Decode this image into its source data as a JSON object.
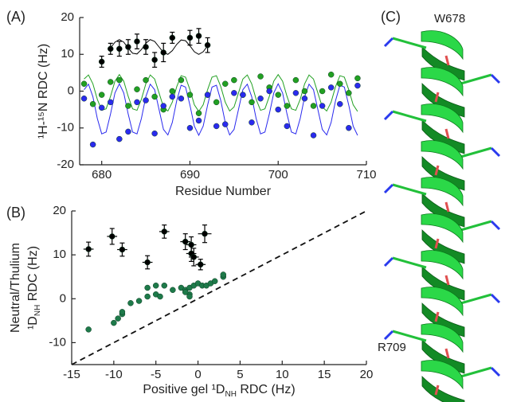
{
  "chart_data": [
    {
      "type": "scatter",
      "panel": "(A)",
      "xlabel": "Residue Number",
      "ylabel": "¹H-¹⁵N RDC (Hz)",
      "xlim": [
        677.5,
        710
      ],
      "xticks": [
        680,
        690,
        700,
        710
      ],
      "ylim": [
        -20,
        20
      ],
      "yticks": [
        -20,
        -10,
        0,
        10,
        20
      ],
      "series": [
        {
          "type": "line",
          "color": "#22a022",
          "x": [
            678,
            678.5,
            679,
            679.5,
            680,
            680.5,
            681,
            681.5,
            682,
            682.5,
            683,
            683.5,
            684,
            684.5,
            685,
            685.5,
            686,
            686.5,
            687,
            687.5,
            688,
            688.5,
            689,
            689.5,
            690,
            690.5,
            691,
            691.5,
            692,
            692.5,
            693,
            693.5,
            694,
            694.5,
            695,
            695.5,
            696,
            696.5,
            697,
            697.5,
            698,
            698.5,
            699,
            699.5,
            700,
            700.5,
            701,
            701.5,
            702,
            702.5,
            703,
            703.5,
            704,
            704.5,
            705,
            705.5,
            706,
            706.5,
            707,
            707.5,
            708,
            708.5,
            709
          ],
          "values": [
            3.3,
            4.4,
            2.0,
            -2.2,
            -5.2,
            -4.8,
            -1.4,
            2.7,
            4.5,
            2.7,
            -1.4,
            -4.8,
            -5.2,
            -2.2,
            2.0,
            4.4,
            3.3,
            -0.5,
            -4.3,
            -5.4,
            -3.0,
            1.2,
            4.2,
            3.8,
            0.4,
            -3.7,
            -5.5,
            -3.7,
            0.4,
            3.8,
            4.2,
            1.2,
            -3.0,
            -5.4,
            -4.3,
            -0.5,
            3.3,
            4.4,
            2.0,
            -2.2,
            -5.2,
            -4.8,
            -1.4,
            2.7,
            4.5,
            2.7,
            -1.4,
            -4.8,
            -5.2,
            -2.2,
            2.0,
            4.4,
            3.3,
            -0.5,
            -4.3,
            -5.4,
            -3.0,
            1.2,
            4.2,
            3.8,
            0.4,
            -3.7,
            -5.5
          ]
        },
        {
          "type": "line",
          "color": "#2a2aee",
          "x": [
            678,
            678.5,
            679,
            679.5,
            680,
            680.5,
            681,
            681.5,
            682,
            682.5,
            683,
            683.5,
            684,
            684.5,
            685,
            685.5,
            686,
            686.5,
            687,
            687.5,
            688,
            688.5,
            689,
            689.5,
            690,
            690.5,
            691,
            691.5,
            692,
            692.5,
            693,
            693.5,
            694,
            694.5,
            695,
            695.5,
            696,
            696.5,
            697,
            697.5,
            698,
            698.5,
            699,
            699.5,
            700,
            700.5,
            701,
            701.5,
            702,
            702.5,
            703,
            703.5,
            704,
            704.5,
            705,
            705.5,
            706,
            706.5,
            707,
            707.5,
            708,
            708.5,
            709
          ],
          "values": [
            0.4,
            1.9,
            -1.5,
            -7.4,
            -11.6,
            -11.1,
            -6.2,
            -0.5,
            2.0,
            -0.5,
            -6.2,
            -11.1,
            -11.6,
            -7.4,
            -1.5,
            1.9,
            0.4,
            -5.0,
            -10.4,
            -11.9,
            -8.5,
            -2.6,
            1.6,
            1.1,
            -3.8,
            -9.5,
            -12.0,
            -9.5,
            -3.8,
            1.1,
            1.6,
            -2.6,
            -8.5,
            -11.9,
            -10.4,
            -5.0,
            0.4,
            1.9,
            -1.5,
            -7.4,
            -11.6,
            -11.1,
            -6.2,
            -0.5,
            2.0,
            -0.5,
            -6.2,
            -11.1,
            -11.6,
            -7.4,
            -1.5,
            1.9,
            0.4,
            -5.0,
            -10.4,
            -11.9,
            -8.5,
            -2.6,
            1.6,
            1.1,
            -3.8,
            -9.5,
            -12.0
          ]
        },
        {
          "type": "line",
          "color": "#000000",
          "x": [
            681,
            681.5,
            682,
            682.5,
            683,
            683.5,
            684,
            684.5,
            685,
            685.5,
            686,
            686.5,
            687,
            687.5,
            688,
            688.5,
            689,
            689.5,
            690,
            690.5,
            691,
            691.5,
            692
          ],
          "values": [
            11.7,
            13.3,
            14.0,
            13.3,
            11.7,
            10.3,
            10.1,
            11.3,
            13.0,
            14.0,
            13.5,
            12.0,
            10.5,
            10.0,
            11.0,
            12.7,
            13.9,
            13.7,
            12.3,
            10.7,
            10.0,
            10.7,
            12.3
          ]
        },
        {
          "type": "scatter",
          "color": "#22a022",
          "x": [
            678,
            679,
            680,
            681,
            682,
            683,
            684,
            685,
            686,
            687,
            688,
            689,
            690,
            691,
            692,
            693,
            694,
            695,
            696,
            697,
            698,
            699,
            700,
            701,
            702,
            703,
            704,
            705,
            706,
            707,
            708,
            709
          ],
          "values": [
            2,
            -3.5,
            -1,
            2.5,
            3,
            -4,
            0.5,
            3,
            -1.5,
            -5,
            0,
            3,
            -1,
            -6,
            -1,
            -3,
            2,
            3,
            -1,
            -3,
            4,
            1,
            -1,
            -4,
            3,
            0,
            -4,
            0,
            4.5,
            2,
            -0.5,
            3.5
          ]
        },
        {
          "type": "scatter",
          "color": "#2a2aee",
          "x": [
            678,
            679,
            680,
            681,
            682,
            683,
            684,
            685,
            686,
            687,
            688,
            689,
            690,
            691,
            692,
            693,
            694,
            695,
            696,
            697,
            698,
            699,
            700,
            701,
            702,
            703,
            704,
            705,
            706,
            707,
            708,
            709
          ],
          "values": [
            -2,
            -14.5,
            -4.5,
            -3,
            -13,
            -11,
            -3,
            -2.5,
            -11.5,
            -4,
            -1.5,
            -2,
            -10,
            -8,
            -1,
            -9.5,
            -9,
            -0.5,
            -1,
            -8.5,
            -2,
            0,
            -5,
            -9.5,
            -0.5,
            -2,
            -12,
            -4,
            1,
            -3.5,
            -10,
            1.5
          ]
        },
        {
          "type": "scatter",
          "color": "#000000",
          "x": [
            680,
            681,
            682,
            683,
            684,
            685,
            686,
            687,
            688,
            690,
            691,
            692
          ],
          "values": [
            8,
            11.5,
            11.5,
            12,
            13.5,
            12,
            8.5,
            10.5,
            14.5,
            14.5,
            15,
            12.5
          ],
          "errors": [
            1.5,
            1.5,
            2,
            2,
            2,
            2,
            2,
            2.5,
            1.5,
            2,
            2,
            2
          ]
        }
      ]
    },
    {
      "type": "scatter",
      "panel": "(B)",
      "xlabel": [
        "Positive gel ¹D",
        "NH",
        " RDC (Hz)"
      ],
      "ylabel": [
        "Neutral/Thulium",
        "¹D",
        "NH",
        " RDC (Hz)"
      ],
      "xlim": [
        -15,
        20
      ],
      "xticks": [
        -15,
        -10,
        -5,
        0,
        5,
        10,
        15,
        20
      ],
      "ylim": [
        -15,
        20
      ],
      "yticks": [
        -10,
        0,
        10,
        20
      ],
      "diagonal": true,
      "series": [
        {
          "type": "scatter",
          "color": "#000000",
          "x": [
            -13,
            -10.2,
            -9,
            -6,
            -4,
            -1.5,
            -0.8,
            -0.8,
            -0.5,
            0.3,
            0.8
          ],
          "values": [
            11.3,
            14.2,
            11.2,
            8.3,
            15.3,
            13,
            12.3,
            10.3,
            9.5,
            7.8,
            14.8
          ],
          "xerrors": [
            0.6,
            0.6,
            0.6,
            0.6,
            0.6,
            0.6,
            0.6,
            0.6,
            0.6,
            0.6,
            0.8
          ],
          "errors": [
            1.6,
            1.8,
            1.5,
            1.5,
            1.5,
            1.8,
            1.8,
            1.8,
            2,
            1.2,
            2
          ]
        },
        {
          "type": "scatter",
          "color": "#1e7a4a",
          "x": [
            -13,
            -10,
            -9.5,
            -9,
            -9,
            -8,
            -7,
            -6,
            -5,
            -4.5,
            -4,
            -3,
            -2,
            -1.5,
            -1,
            -1,
            -1,
            -0.5,
            0,
            0.5,
            1,
            1.5,
            2,
            3,
            3,
            -6,
            -5,
            -1.5
          ],
          "values": [
            -7,
            -5.5,
            -4.5,
            -3.5,
            -3,
            -1,
            -0.5,
            0.5,
            1,
            0.5,
            3,
            2,
            2.5,
            2,
            1,
            0.5,
            2.5,
            3,
            3.5,
            3,
            3,
            3.5,
            4,
            5,
            5.5,
            2.5,
            3,
            1.5
          ]
        }
      ]
    }
  ],
  "panel_c": {
    "label": "(C)",
    "annotations": [
      "W678",
      "R709"
    ]
  }
}
